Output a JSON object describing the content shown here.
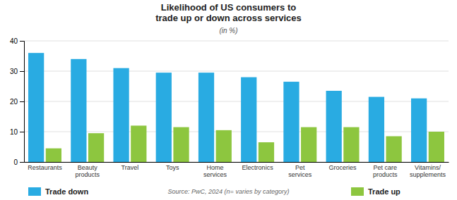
{
  "chart_data": {
    "type": "bar",
    "title": "Likelihood of US consumers to\ntrade up or down across services",
    "subtitle": "(in %)",
    "categories": [
      "Restaurants",
      "Beauty\nproducts",
      "Travel",
      "Toys",
      "Home\nservices",
      "Electronics",
      "Pet\nservices",
      "Groceries",
      "Pet care\nproducts",
      "Vitamins/\nsupplements"
    ],
    "series": [
      {
        "name": "Trade down",
        "color": "#29ABE2",
        "values": [
          36,
          34,
          31,
          29.5,
          29.5,
          28,
          26.5,
          23.5,
          21.5,
          21
        ]
      },
      {
        "name": "Trade up",
        "color": "#8DC63F",
        "values": [
          4.5,
          9.5,
          12,
          11.5,
          10.5,
          6.5,
          11.5,
          11.5,
          8.5,
          10
        ]
      }
    ],
    "ylim": [
      0,
      40
    ],
    "yticks": [
      0,
      10,
      20,
      30,
      40
    ],
    "grid": true,
    "legend": "bottom",
    "annotations": [
      "Source: PwC, 2024 (n= varies by category)"
    ]
  }
}
